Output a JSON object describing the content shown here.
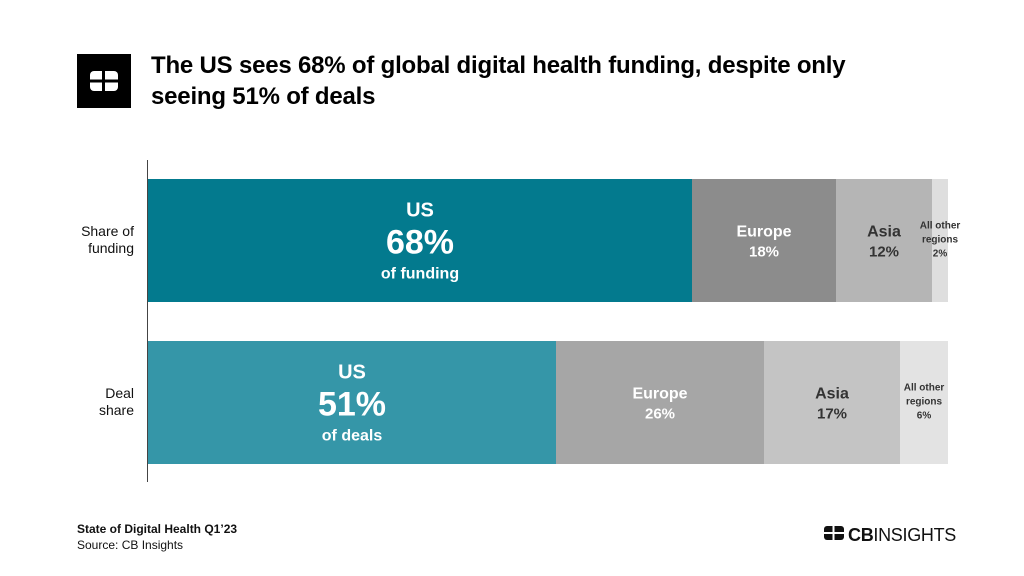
{
  "header": {
    "title_line1": "The US sees 68% of global digital health funding, despite only",
    "title_line2": "seeing 51% of deals"
  },
  "rows": [
    {
      "label_line1": "Share of",
      "label_line2": "funding"
    },
    {
      "label_line1": "Deal",
      "label_line2": "share"
    }
  ],
  "footer": {
    "title": "State of Digital Health Q1’23",
    "source": "Source: CB Insights"
  },
  "brand": {
    "bold": "CB",
    "light": "INSIGHTS"
  },
  "chart_data": {
    "type": "bar",
    "orientation": "horizontal-stacked-100",
    "categories": [
      "Share of funding",
      "Deal share"
    ],
    "series": [
      {
        "name": "US",
        "values": [
          68,
          51
        ]
      },
      {
        "name": "Europe",
        "values": [
          18,
          26
        ]
      },
      {
        "name": "Asia",
        "values": [
          12,
          17
        ]
      },
      {
        "name": "All other regions",
        "values": [
          2,
          6
        ]
      }
    ],
    "segment_labels": [
      [
        {
          "lines": [
            "US"
          ],
          "big": "68%",
          "sub": "of funding"
        },
        {
          "lines": [
            "Europe",
            "18%"
          ]
        },
        {
          "lines": [
            "Asia",
            "12%"
          ]
        },
        {
          "lines": [
            "All other",
            "regions",
            "2%"
          ]
        }
      ],
      [
        {
          "lines": [
            "US"
          ],
          "big": "51%",
          "sub": "of deals"
        },
        {
          "lines": [
            "Europe",
            "26%"
          ]
        },
        {
          "lines": [
            "Asia",
            "17%"
          ]
        },
        {
          "lines": [
            "All other",
            "regions",
            "6%"
          ]
        }
      ]
    ],
    "colors": [
      [
        "#037a8e",
        "#8c8c8c",
        "#b5b5b5",
        "#dedede"
      ],
      [
        "#3596a8",
        "#a6a6a6",
        "#c4c4c4",
        "#e3e3e3"
      ]
    ],
    "label_colors": [
      [
        "#ffffff",
        "#ffffff",
        "#333333",
        "#333333"
      ],
      [
        "#ffffff",
        "#ffffff",
        "#333333",
        "#333333"
      ]
    ],
    "xlim": [
      0,
      100
    ],
    "legend": "none",
    "grid": false
  }
}
